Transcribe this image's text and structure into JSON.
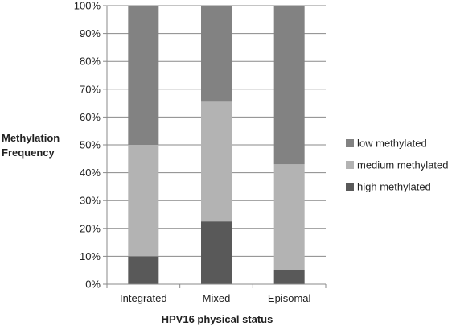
{
  "chart_data": {
    "type": "bar",
    "stacked": true,
    "percent": true,
    "categories": [
      "Integrated",
      "Mixed",
      "Episomal"
    ],
    "series": [
      {
        "name": "high methylated",
        "color": "#595959",
        "values": [
          10,
          22.5,
          5
        ]
      },
      {
        "name": "medium methylated",
        "color": "#b3b3b3",
        "values": [
          40,
          43,
          38
        ]
      },
      {
        "name": "low methylated",
        "color": "#828282",
        "values": [
          50,
          34.5,
          57
        ]
      }
    ],
    "xlabel": "HPV16 physical status",
    "ylabel_lines": [
      "Methylation",
      "Frequency"
    ],
    "ylim": [
      0,
      100
    ],
    "yticks": [
      0,
      10,
      20,
      30,
      40,
      50,
      60,
      70,
      80,
      90,
      100
    ],
    "ytick_labels": [
      "0%",
      "10%",
      "20%",
      "30%",
      "40%",
      "50%",
      "60%",
      "70%",
      "80%",
      "90%",
      "100%"
    ],
    "grid": true,
    "legend_position": "right",
    "legend_order": [
      "low methylated",
      "medium methylated",
      "high methylated"
    ]
  }
}
